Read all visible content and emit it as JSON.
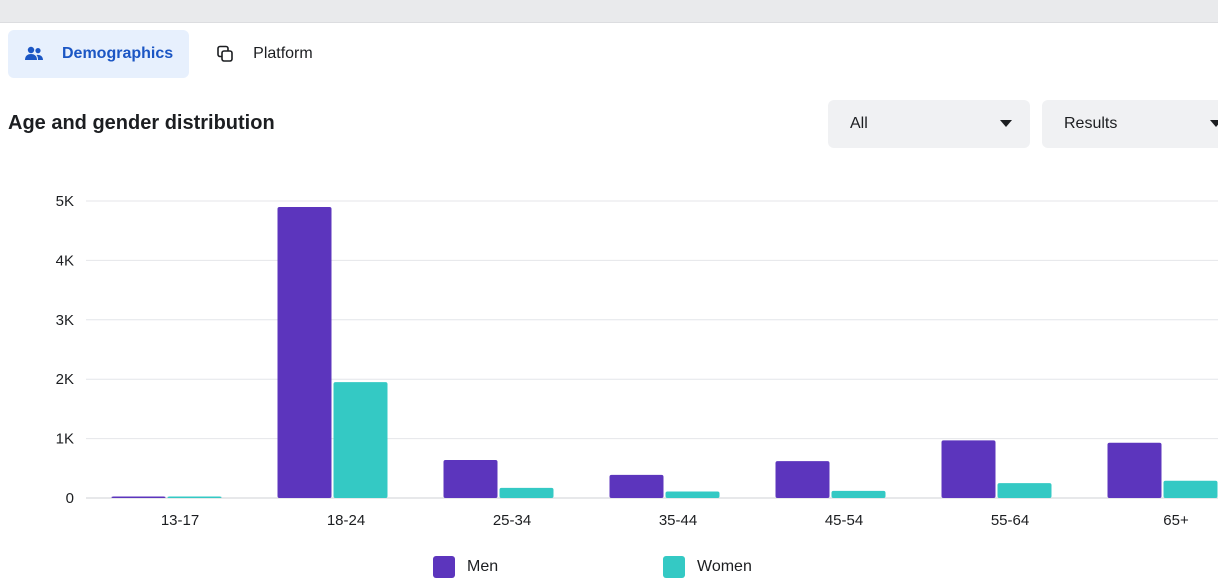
{
  "tabs": [
    {
      "label": "Demographics",
      "icon": "people-icon",
      "active": true
    },
    {
      "label": "Platform",
      "icon": "devices-icon",
      "active": false
    }
  ],
  "filters": {
    "audience": "All",
    "metric": "Results"
  },
  "colors": {
    "men": "#5c35bd",
    "women": "#34c9c4",
    "grid": "#e4e6ea",
    "accent": "#1b56c4"
  },
  "chart_data": {
    "type": "bar",
    "title": "Age and gender distribution",
    "categories": [
      "13-17",
      "18-24",
      "25-34",
      "35-44",
      "45-54",
      "55-64",
      "65+"
    ],
    "series": [
      {
        "name": "Men",
        "values": [
          20,
          4900,
          640,
          390,
          620,
          970,
          930
        ]
      },
      {
        "name": "Women",
        "values": [
          15,
          1950,
          170,
          110,
          120,
          250,
          290
        ]
      }
    ],
    "y_ticks": [
      "0",
      "1K",
      "2K",
      "3K",
      "4K",
      "5K"
    ],
    "ylim": [
      0,
      5000
    ],
    "xlabel": "",
    "ylabel": "",
    "grid": true,
    "legend_position": "bottom"
  }
}
